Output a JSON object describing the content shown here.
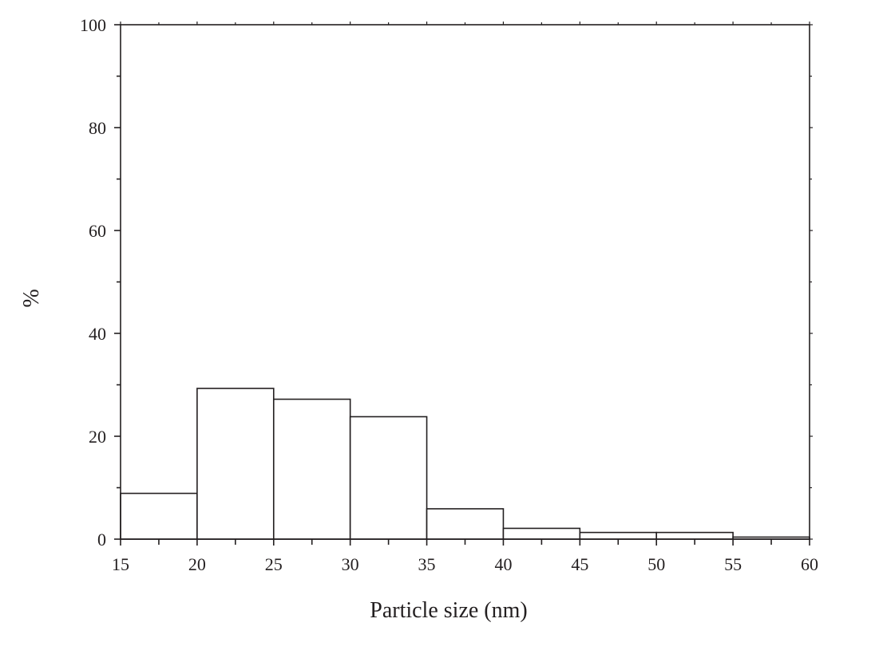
{
  "chart_data": {
    "type": "bar",
    "title": "",
    "xlabel": "Particle size (nm)",
    "ylabel": "%",
    "bin_edges": [
      15,
      20,
      25,
      30,
      35,
      40,
      45,
      50,
      55,
      60
    ],
    "values": [
      8.9,
      29.3,
      27.2,
      23.8,
      5.9,
      2.1,
      1.3,
      1.3,
      0.4
    ],
    "xlim": [
      15,
      60
    ],
    "ylim": [
      0,
      100
    ],
    "x_ticks": [
      "15",
      "20",
      "25",
      "30",
      "35",
      "40",
      "45",
      "50",
      "55",
      "60"
    ],
    "y_ticks": [
      "0",
      "20",
      "40",
      "60",
      "80",
      "100"
    ],
    "grid": false,
    "legend": "none",
    "colors": {
      "bar_fill": "#ffffff",
      "bar_stroke": "#231f20",
      "axis": "#231f20"
    }
  }
}
